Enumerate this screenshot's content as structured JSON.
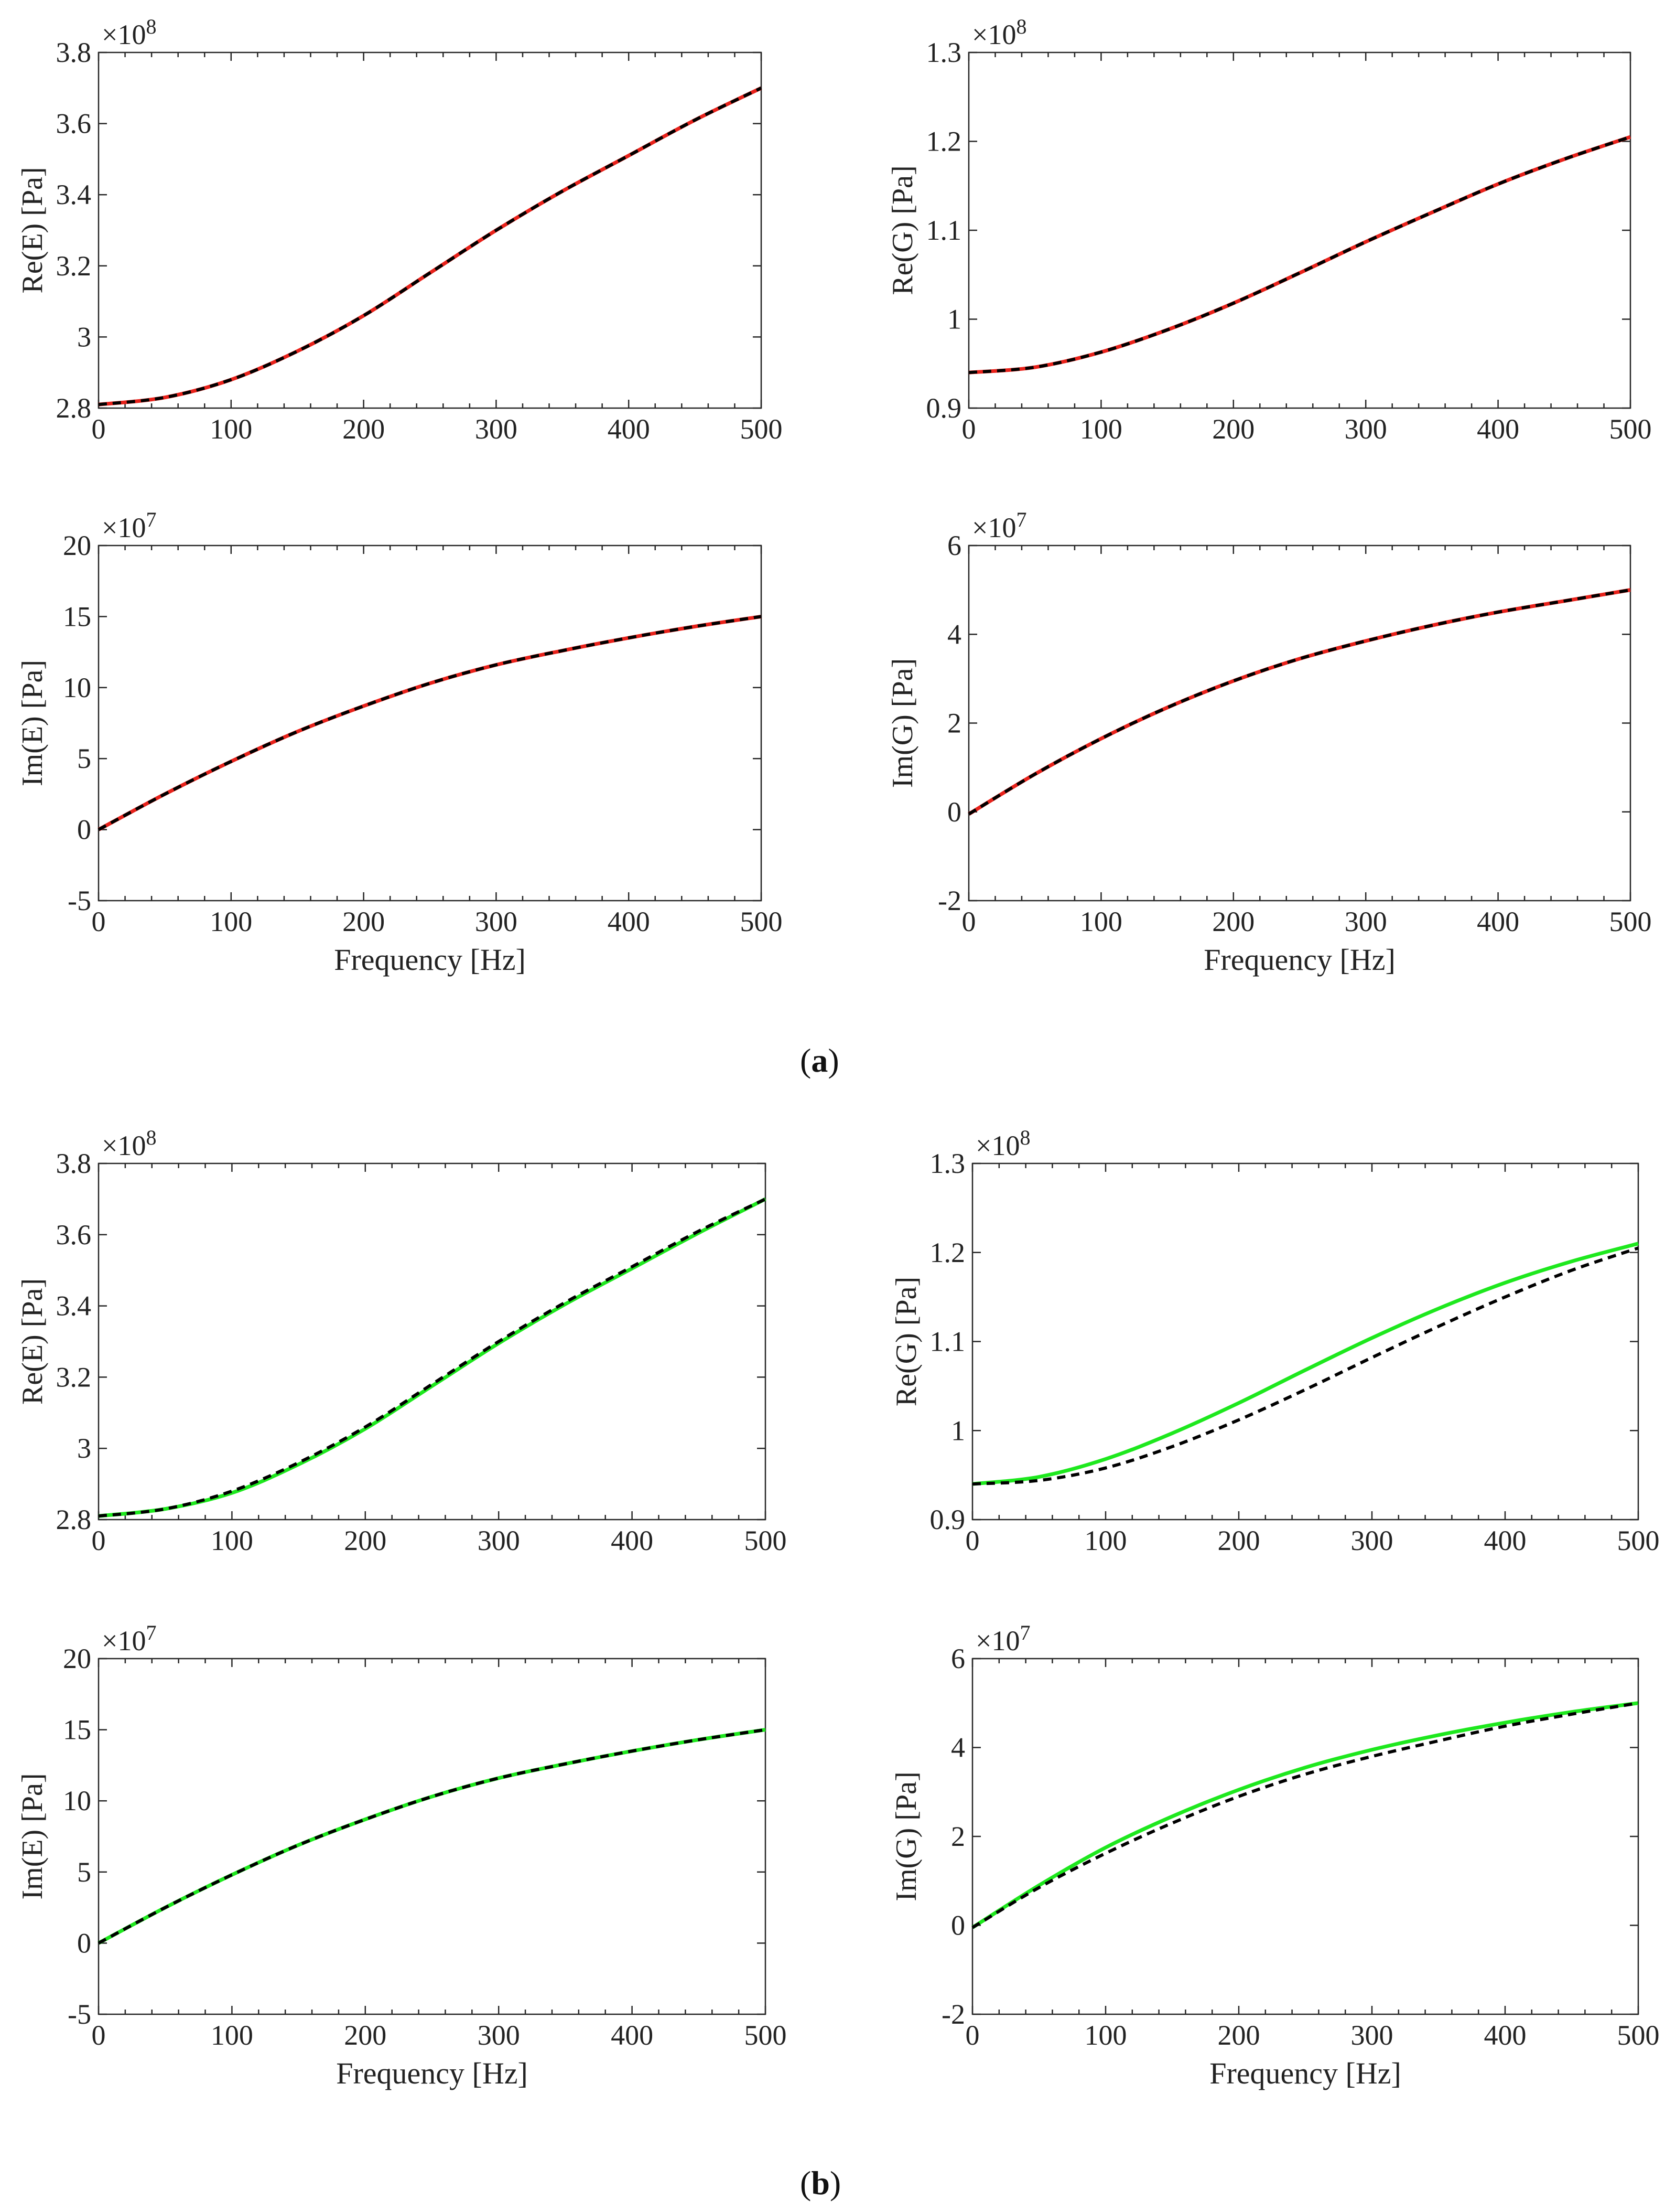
{
  "panels": [
    {
      "label_open": "(",
      "label_letter": "a",
      "label_close": ")"
    },
    {
      "label_open": "(",
      "label_letter": "b",
      "label_close": ")"
    }
  ],
  "chart_data": [
    {
      "panel": "a",
      "type": "line",
      "ylabel": "Re(E) [Pa]",
      "xlabel": "",
      "exponent": "×10^8",
      "xlim": [
        0,
        500
      ],
      "ylim": [
        2.8,
        3.8
      ],
      "xticks": [
        "0",
        "100",
        "200",
        "300",
        "400",
        "500"
      ],
      "yticks": [
        "2.8",
        "3",
        "3.2",
        "3.4",
        "3.6",
        "3.8"
      ],
      "x": [
        0,
        50,
        100,
        150,
        200,
        250,
        300,
        350,
        400,
        450,
        500
      ],
      "series": [
        {
          "color": "#e8221b",
          "style": "solid",
          "values": [
            2.81,
            2.83,
            2.88,
            2.96,
            3.06,
            3.18,
            3.3,
            3.41,
            3.51,
            3.61,
            3.7
          ]
        },
        {
          "color": "#000000",
          "style": "dashed",
          "values": [
            2.81,
            2.83,
            2.88,
            2.96,
            3.06,
            3.18,
            3.3,
            3.41,
            3.51,
            3.61,
            3.7
          ]
        }
      ]
    },
    {
      "panel": "a",
      "type": "line",
      "ylabel": "Re(G) [Pa]",
      "xlabel": "",
      "exponent": "×10^8",
      "xlim": [
        0,
        500
      ],
      "ylim": [
        0.9,
        1.3
      ],
      "xticks": [
        "0",
        "100",
        "200",
        "300",
        "400",
        "500"
      ],
      "yticks": [
        "0.9",
        "1",
        "1.1",
        "1.2",
        "1.3"
      ],
      "x": [
        0,
        50,
        100,
        150,
        200,
        250,
        300,
        350,
        400,
        450,
        500
      ],
      "series": [
        {
          "color": "#e8221b",
          "style": "solid",
          "values": [
            0.94,
            0.946,
            0.963,
            0.988,
            1.018,
            1.052,
            1.087,
            1.12,
            1.152,
            1.18,
            1.205
          ]
        },
        {
          "color": "#000000",
          "style": "dashed",
          "values": [
            0.94,
            0.946,
            0.963,
            0.988,
            1.018,
            1.052,
            1.087,
            1.12,
            1.152,
            1.18,
            1.205
          ]
        }
      ]
    },
    {
      "panel": "a",
      "type": "line",
      "ylabel": "Im(E) [Pa]",
      "xlabel": "Frequency [Hz]",
      "exponent": "×10^7",
      "xlim": [
        0,
        500
      ],
      "ylim": [
        -5,
        20
      ],
      "xticks": [
        "0",
        "100",
        "200",
        "300",
        "400",
        "500"
      ],
      "yticks": [
        "-5",
        "0",
        "5",
        "10",
        "15",
        "20"
      ],
      "x": [
        0,
        50,
        100,
        150,
        200,
        250,
        300,
        350,
        400,
        450,
        500
      ],
      "series": [
        {
          "color": "#e8221b",
          "style": "solid",
          "values": [
            0,
            2.5,
            4.8,
            6.9,
            8.7,
            10.3,
            11.6,
            12.6,
            13.5,
            14.3,
            15.0
          ]
        },
        {
          "color": "#000000",
          "style": "dashed",
          "values": [
            0,
            2.5,
            4.8,
            6.9,
            8.7,
            10.3,
            11.6,
            12.6,
            13.5,
            14.3,
            15.0
          ]
        }
      ]
    },
    {
      "panel": "a",
      "type": "line",
      "ylabel": "Im(G) [Pa]",
      "xlabel": "Frequency [Hz]",
      "exponent": "×10^7",
      "xlim": [
        0,
        500
      ],
      "ylim": [
        -2,
        6
      ],
      "xticks": [
        "0",
        "100",
        "200",
        "300",
        "400",
        "500"
      ],
      "yticks": [
        "-2",
        "0",
        "2",
        "4",
        "6"
      ],
      "x": [
        0,
        50,
        100,
        150,
        200,
        250,
        300,
        350,
        400,
        450,
        500
      ],
      "series": [
        {
          "color": "#e8221b",
          "style": "solid",
          "values": [
            -0.05,
            0.85,
            1.65,
            2.35,
            2.95,
            3.45,
            3.85,
            4.2,
            4.5,
            4.75,
            5.0
          ]
        },
        {
          "color": "#000000",
          "style": "dashed",
          "values": [
            -0.05,
            0.85,
            1.65,
            2.35,
            2.95,
            3.45,
            3.85,
            4.2,
            4.5,
            4.75,
            5.0
          ]
        }
      ]
    },
    {
      "panel": "b",
      "type": "line",
      "ylabel": "Re(E) [Pa]",
      "xlabel": "",
      "exponent": "×10^8",
      "xlim": [
        0,
        500
      ],
      "ylim": [
        2.8,
        3.8
      ],
      "xticks": [
        "0",
        "100",
        "200",
        "300",
        "400",
        "500"
      ],
      "yticks": [
        "2.8",
        "3",
        "3.2",
        "3.4",
        "3.6",
        "3.8"
      ],
      "x": [
        0,
        50,
        100,
        150,
        200,
        250,
        300,
        350,
        400,
        450,
        500
      ],
      "series": [
        {
          "color": "#1ee81e",
          "style": "solid",
          "values": [
            2.81,
            2.83,
            2.875,
            2.955,
            3.055,
            3.175,
            3.295,
            3.405,
            3.505,
            3.605,
            3.7
          ]
        },
        {
          "color": "#000000",
          "style": "dashed",
          "values": [
            2.81,
            2.83,
            2.88,
            2.96,
            3.06,
            3.18,
            3.3,
            3.41,
            3.51,
            3.61,
            3.7
          ]
        }
      ]
    },
    {
      "panel": "b",
      "type": "line",
      "ylabel": "Re(G) [Pa]",
      "xlabel": "",
      "exponent": "×10^8",
      "xlim": [
        0,
        500
      ],
      "ylim": [
        0.9,
        1.3
      ],
      "xticks": [
        "0",
        "100",
        "200",
        "300",
        "400",
        "500"
      ],
      "yticks": [
        "0.9",
        "1",
        "1.1",
        "1.2",
        "1.3"
      ],
      "x": [
        0,
        50,
        100,
        150,
        200,
        250,
        300,
        350,
        400,
        450,
        500
      ],
      "series": [
        {
          "color": "#1ee81e",
          "style": "solid",
          "values": [
            0.94,
            0.948,
            0.968,
            0.997,
            1.031,
            1.068,
            1.104,
            1.137,
            1.166,
            1.19,
            1.21
          ]
        },
        {
          "color": "#000000",
          "style": "dashed",
          "values": [
            0.94,
            0.944,
            0.958,
            0.982,
            1.012,
            1.046,
            1.082,
            1.117,
            1.15,
            1.18,
            1.205
          ]
        }
      ]
    },
    {
      "panel": "b",
      "type": "line",
      "ylabel": "Im(E) [Pa]",
      "xlabel": "Frequency [Hz]",
      "exponent": "×10^7",
      "xlim": [
        0,
        500
      ],
      "ylim": [
        -5,
        20
      ],
      "xticks": [
        "0",
        "100",
        "200",
        "300",
        "400",
        "500"
      ],
      "yticks": [
        "-5",
        "0",
        "5",
        "10",
        "15",
        "20"
      ],
      "x": [
        0,
        50,
        100,
        150,
        200,
        250,
        300,
        350,
        400,
        450,
        500
      ],
      "series": [
        {
          "color": "#1ee81e",
          "style": "solid",
          "values": [
            0,
            2.5,
            4.8,
            6.9,
            8.7,
            10.3,
            11.6,
            12.6,
            13.5,
            14.3,
            15.0
          ]
        },
        {
          "color": "#000000",
          "style": "dashed",
          "values": [
            0,
            2.5,
            4.8,
            6.9,
            8.7,
            10.3,
            11.6,
            12.6,
            13.5,
            14.3,
            15.0
          ]
        }
      ]
    },
    {
      "panel": "b",
      "type": "line",
      "ylabel": "Im(G) [Pa]",
      "xlabel": "Frequency [Hz]",
      "exponent": "×10^7",
      "xlim": [
        0,
        500
      ],
      "ylim": [
        -2,
        6
      ],
      "xticks": [
        "0",
        "100",
        "200",
        "300",
        "400",
        "500"
      ],
      "yticks": [
        "-2",
        "0",
        "2",
        "4",
        "6"
      ],
      "x": [
        0,
        50,
        100,
        150,
        200,
        250,
        300,
        350,
        400,
        450,
        500
      ],
      "series": [
        {
          "color": "#1ee81e",
          "style": "solid",
          "values": [
            -0.05,
            0.9,
            1.75,
            2.45,
            3.05,
            3.55,
            3.95,
            4.28,
            4.56,
            4.8,
            5.0
          ]
        },
        {
          "color": "#000000",
          "style": "dashed",
          "values": [
            -0.05,
            0.85,
            1.62,
            2.3,
            2.9,
            3.4,
            3.8,
            4.15,
            4.48,
            4.75,
            5.0
          ]
        }
      ]
    }
  ]
}
